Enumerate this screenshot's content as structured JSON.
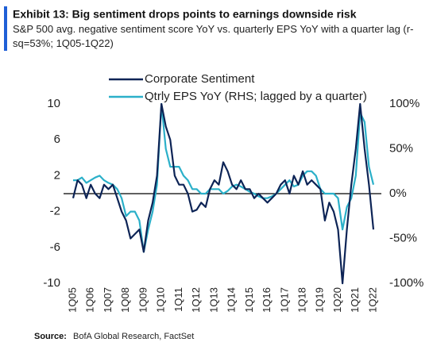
{
  "chart_data": {
    "type": "line",
    "title": "Exhibit 13: Big sentiment drops points to earnings downside risk",
    "subtitle": "S&P 500 avg. negative sentiment score YoY vs. quarterly EPS YoY with a quarter lag (r-sq=53%; 1Q05-1Q22)",
    "categories": [
      "1Q05",
      null,
      null,
      null,
      "1Q06",
      null,
      null,
      null,
      "1Q07",
      null,
      null,
      null,
      "1Q08",
      null,
      null,
      null,
      "1Q09",
      null,
      null,
      null,
      "1Q10",
      null,
      null,
      null,
      "1Q11",
      null,
      null,
      null,
      "1Q12",
      null,
      null,
      null,
      "1Q13",
      null,
      null,
      null,
      "1Q14",
      null,
      null,
      null,
      "1Q15",
      null,
      null,
      null,
      "1Q16",
      null,
      null,
      null,
      "1Q17",
      null,
      null,
      null,
      "1Q18",
      null,
      null,
      null,
      "1Q19",
      null,
      null,
      null,
      "1Q20",
      null,
      null,
      null,
      "1Q21",
      null,
      null,
      null,
      "1Q22"
    ],
    "series": [
      {
        "name": "Corporate Sentiment",
        "color": "#0d2456",
        "axis": "y",
        "values": [
          -0.5,
          1.5,
          1,
          -0.5,
          1,
          0,
          -0.5,
          1,
          0.5,
          1,
          -0.5,
          -2,
          -3,
          -5,
          -4.5,
          -4,
          -6.5,
          -3,
          -1,
          2,
          10,
          7.5,
          6,
          2,
          1,
          1,
          0,
          -2,
          -1.8,
          -1,
          -1.5,
          0.5,
          1.5,
          1,
          3.5,
          2.5,
          1,
          0.5,
          1.5,
          0.5,
          0.5,
          -0.5,
          0,
          -0.5,
          -1,
          -0.5,
          0,
          1,
          1.5,
          0,
          2,
          1,
          2.5,
          1,
          1.5,
          1,
          0.5,
          -3,
          -1,
          -2,
          -4,
          -10,
          -4,
          1,
          5,
          10,
          5,
          1,
          -4
        ]
      },
      {
        "name": "Qtrly EPS YoY (RHS; lagged by a quarter)",
        "color": "#2bb0c9",
        "axis": "y2",
        "values": [
          15,
          15,
          18,
          12,
          15,
          18,
          20,
          15,
          12,
          10,
          5,
          -5,
          -25,
          -20,
          -20,
          -30,
          -65,
          -40,
          -20,
          10,
          100,
          50,
          30,
          30,
          30,
          20,
          15,
          5,
          5,
          0,
          0,
          5,
          5,
          5,
          0,
          3,
          8,
          10,
          8,
          5,
          2,
          0,
          -3,
          -5,
          -5,
          -3,
          0,
          5,
          10,
          15,
          8,
          10,
          20,
          25,
          25,
          20,
          5,
          0,
          0,
          0,
          -5,
          -40,
          -15,
          -5,
          20,
          90,
          80,
          30,
          10
        ]
      }
    ],
    "ylim": [
      -10,
      10
    ],
    "yticks": [
      -10,
      -6,
      -2,
      2,
      6,
      10
    ],
    "y2lim": [
      -100,
      100
    ],
    "y2ticks": [
      {
        "value": -100,
        "label": "-100%"
      },
      {
        "value": -50,
        "label": "-50%"
      },
      {
        "value": 0,
        "label": "0%"
      },
      {
        "value": 50,
        "label": "50%"
      },
      {
        "value": 100,
        "label": "100%"
      }
    ],
    "legend": "top",
    "source": {
      "label": "Source:",
      "text": "BofA Global Research, FactSet"
    }
  }
}
